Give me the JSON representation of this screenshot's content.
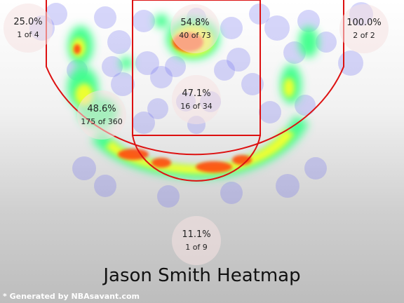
{
  "title": "Jason Smith Heatmap",
  "credit": "* Generated by NBAsavant.com",
  "zones": [
    {
      "id": "left-corner",
      "pct": "25.0%",
      "count": "1 of 4"
    },
    {
      "id": "restricted-area",
      "pct": "54.8%",
      "count": "40 of 73"
    },
    {
      "id": "right-corner",
      "pct": "100.0%",
      "count": "2 of 2"
    },
    {
      "id": "paint",
      "pct": "47.1%",
      "count": "16 of 34"
    },
    {
      "id": "left-midrange",
      "pct": "48.6%",
      "count": "175 of 360"
    },
    {
      "id": "backcourt",
      "pct": "11.1%",
      "count": "1 of 9"
    }
  ],
  "colors": {
    "court_lines": "#dd1111",
    "shot_marker": "#6e6ef0",
    "heat_low": "#3dff8a",
    "heat_mid": "#f6ff2c",
    "heat_high": "#ff4a10"
  }
}
